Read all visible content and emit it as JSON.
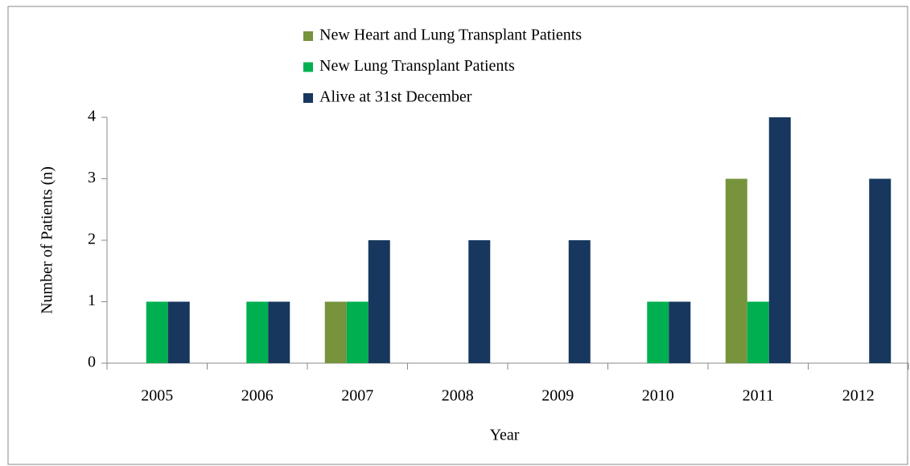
{
  "chart_data": {
    "type": "bar",
    "x_label": "Year",
    "y_label": "Number of Patients (n)",
    "categories": [
      "2005",
      "2006",
      "2007",
      "2008",
      "2009",
      "2010",
      "2011",
      "2012"
    ],
    "series": [
      {
        "name": "New Heart and Lung Transplant Patients",
        "color": "#77933c",
        "values": [
          0,
          0,
          1,
          0,
          0,
          0,
          3,
          0
        ]
      },
      {
        "name": "New Lung Transplant Patients",
        "color": "#00b050",
        "values": [
          1,
          1,
          1,
          0,
          0,
          1,
          1,
          0
        ]
      },
      {
        "name": "Alive at 31st December",
        "color": "#17375e",
        "values": [
          1,
          1,
          2,
          2,
          2,
          1,
          4,
          3
        ]
      }
    ],
    "ylim": [
      0,
      4
    ],
    "yticks": [
      0,
      1,
      2,
      3,
      4
    ],
    "legend": "top"
  }
}
